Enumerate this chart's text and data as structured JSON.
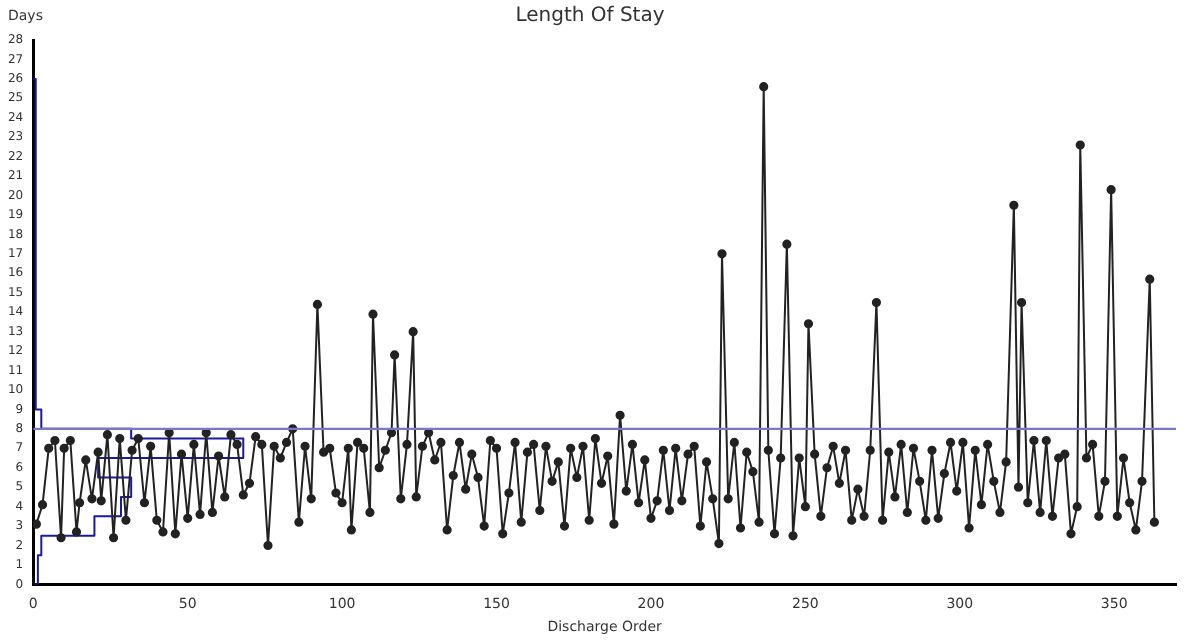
{
  "chart_data": {
    "type": "line",
    "title": "Length Of Stay",
    "xlabel": "Discharge Order",
    "ylabel": "Days",
    "xlim": [
      0,
      370
    ],
    "xticks": [
      0,
      50,
      100,
      150,
      200,
      250,
      300,
      350
    ],
    "ylim": [
      0,
      28
    ],
    "yticks": [
      0,
      1,
      2,
      3,
      4,
      5,
      6,
      7,
      8,
      9,
      10,
      11,
      12,
      13,
      14,
      15,
      16,
      17,
      18,
      19,
      20,
      21,
      22,
      23,
      24,
      25,
      26,
      27,
      28
    ],
    "grid": false,
    "legend": false,
    "marker": "circle",
    "ref_lines": [
      {
        "axis": "y",
        "value": 8,
        "color": "#7777cc"
      }
    ],
    "series": [
      {
        "color": "#222222",
        "x": [
          1,
          3,
          5,
          7,
          9,
          10,
          12,
          14,
          15,
          17,
          19,
          21,
          22,
          24,
          26,
          28,
          30,
          32,
          34,
          36,
          38,
          40,
          42,
          44,
          46,
          48,
          50,
          52,
          54,
          56,
          58,
          60,
          62,
          64,
          66,
          68,
          70,
          72,
          74,
          76,
          78,
          80,
          82,
          84,
          86,
          88,
          90,
          92,
          94,
          96,
          98,
          100,
          102,
          103,
          105,
          107,
          109,
          110,
          112,
          114,
          116,
          117,
          119,
          121,
          123,
          124,
          126,
          128,
          130,
          132,
          134,
          136,
          138,
          140,
          142,
          144,
          146,
          148,
          150,
          152,
          154,
          156,
          158,
          160,
          162,
          164,
          166,
          168,
          170,
          172,
          174,
          176,
          178,
          180,
          182,
          184,
          186,
          188,
          190,
          192,
          194,
          196,
          198,
          200,
          202,
          204,
          206,
          208,
          210,
          212,
          214,
          216,
          218,
          220,
          222,
          223,
          225,
          227,
          229,
          231,
          233,
          235,
          236.5,
          238,
          240,
          242,
          244,
          246,
          248,
          250,
          251,
          253,
          255,
          257,
          259,
          261,
          263,
          265,
          267,
          269,
          271,
          273,
          275,
          277,
          279,
          281,
          283,
          285,
          287,
          289,
          291,
          293,
          295,
          297,
          299,
          301,
          303,
          305,
          307,
          309,
          311,
          313,
          315,
          317.5,
          319,
          320,
          322,
          324,
          326,
          328,
          330,
          332,
          334,
          336,
          338,
          339,
          341,
          343,
          345,
          347,
          349,
          351,
          353,
          355,
          357,
          359,
          361.5,
          363
        ],
        "values": [
          3.1,
          4.1,
          7.0,
          7.4,
          2.4,
          7.0,
          7.4,
          2.7,
          4.2,
          6.4,
          4.4,
          6.8,
          4.3,
          7.7,
          2.4,
          7.5,
          3.3,
          6.9,
          7.5,
          4.2,
          7.1,
          3.3,
          2.7,
          7.8,
          2.6,
          6.7,
          3.4,
          7.2,
          3.6,
          7.8,
          3.7,
          6.6,
          4.5,
          7.7,
          7.2,
          4.6,
          5.2,
          7.6,
          7.2,
          2.0,
          7.1,
          6.5,
          7.3,
          8.0,
          3.2,
          7.1,
          4.4,
          14.4,
          6.8,
          7.0,
          4.7,
          4.2,
          7.0,
          2.8,
          7.3,
          7.0,
          3.7,
          13.9,
          6.0,
          6.9,
          7.8,
          11.8,
          4.4,
          7.2,
          13.0,
          4.5,
          7.1,
          7.8,
          6.4,
          7.3,
          2.8,
          5.6,
          7.3,
          4.9,
          6.7,
          5.5,
          3.0,
          7.4,
          7.0,
          2.6,
          4.7,
          7.3,
          3.2,
          6.8,
          7.2,
          3.8,
          7.1,
          5.3,
          6.3,
          3.0,
          7.0,
          5.5,
          7.1,
          3.3,
          7.5,
          5.2,
          6.6,
          3.1,
          8.7,
          4.8,
          7.2,
          4.2,
          6.4,
          3.4,
          4.3,
          6.9,
          3.8,
          7.0,
          4.3,
          6.7,
          7.1,
          3.0,
          6.3,
          4.4,
          2.1,
          17.0,
          4.4,
          7.3,
          2.9,
          6.8,
          5.8,
          3.2,
          25.6,
          6.9,
          2.6,
          6.5,
          17.5,
          2.5,
          6.5,
          4.0,
          13.4,
          6.7,
          3.5,
          6.0,
          7.1,
          5.2,
          6.9,
          3.3,
          4.9,
          3.5,
          6.9,
          14.5,
          3.3,
          6.8,
          4.5,
          7.2,
          3.7,
          7.0,
          5.3,
          3.3,
          6.9,
          3.4,
          5.7,
          7.3,
          4.8,
          7.3,
          2.9,
          6.9,
          4.1,
          7.2,
          5.3,
          3.7,
          6.3,
          19.5,
          5.0,
          14.5,
          4.2,
          7.4,
          3.7,
          7.4,
          3.5,
          6.5,
          6.7,
          2.6,
          4.0,
          22.6,
          6.5,
          7.2,
          3.5,
          5.3,
          20.3,
          3.5,
          6.5,
          4.2,
          2.8,
          5.3,
          15.7,
          3.2
        ]
      },
      {
        "color": "#1a1aa0",
        "marker": "none",
        "x": [
          0,
          1.5,
          1.5,
          2.6,
          2.6,
          19.8,
          19.8,
          28.4,
          28.4,
          31.7,
          31.7,
          21,
          21,
          68,
          68,
          31.7,
          31.7,
          2.6,
          2.6,
          0.8,
          0.8,
          0
        ],
        "values": [
          0,
          0,
          1.5,
          1.5,
          2.5,
          2.5,
          3.5,
          3.5,
          4.5,
          4.5,
          5.5,
          5.5,
          6.5,
          6.5,
          7.5,
          7.5,
          8,
          8,
          9,
          9,
          26,
          26
        ]
      }
    ]
  }
}
